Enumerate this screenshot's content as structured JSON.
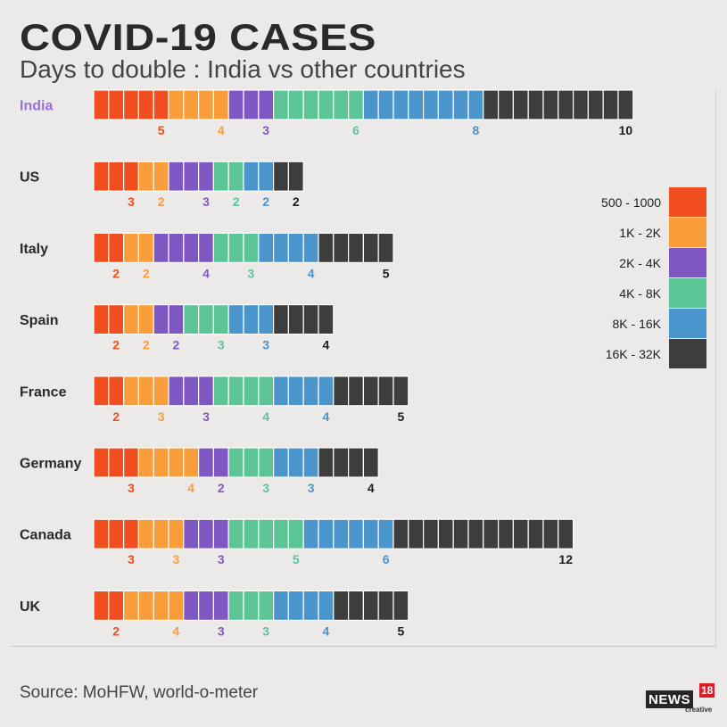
{
  "title": "COVID-19 CASES",
  "subtitle": "Days to double : India vs other countries",
  "source": "Source: MoHFW, world-o-meter",
  "logo": {
    "brand": "NEWS",
    "number": "18",
    "tagline": "creative"
  },
  "chart_data": {
    "type": "bar",
    "stacked": true,
    "orientation": "horizontal",
    "unit": "days to double",
    "categories": [
      "India",
      "US",
      "Italy",
      "Spain",
      "France",
      "Germany",
      "Canada",
      "UK"
    ],
    "highlight_category": "India",
    "series": [
      {
        "name": "500 - 1000",
        "color": "#f04e1f",
        "values": [
          5,
          3,
          2,
          2,
          2,
          3,
          3,
          2
        ]
      },
      {
        "name": "1K - 2K",
        "color": "#f99d3a",
        "values": [
          4,
          2,
          2,
          2,
          3,
          4,
          3,
          4
        ]
      },
      {
        "name": "2K - 4K",
        "color": "#7e57c2",
        "values": [
          3,
          3,
          4,
          2,
          3,
          2,
          3,
          3
        ]
      },
      {
        "name": "4K - 8K",
        "color": "#5cc596",
        "values": [
          6,
          2,
          3,
          3,
          4,
          3,
          5,
          3
        ]
      },
      {
        "name": "8K - 16K",
        "color": "#4a95cc",
        "values": [
          8,
          2,
          4,
          3,
          4,
          3,
          6,
          4
        ]
      },
      {
        "name": "16K - 32K",
        "color": "#3d3d3d",
        "values": [
          10,
          2,
          5,
          4,
          5,
          4,
          12,
          5
        ]
      }
    ],
    "legend": {
      "position": "right"
    },
    "grid": false
  },
  "colors": {
    "highlight_label": "#9b6fd6",
    "label_text": "#2a2a2a"
  }
}
